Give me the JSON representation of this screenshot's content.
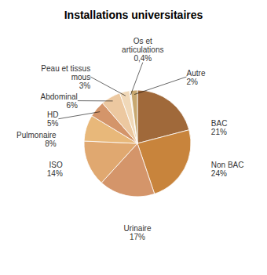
{
  "chart_data": {
    "type": "pie",
    "title": "Installations universitaires",
    "categories": [
      "BAC",
      "Non BAC",
      "Urinaire",
      "ISO",
      "Pulmonaire",
      "HD",
      "Abdominal",
      "Peau et tissus\nmous",
      "Os et\narticulations",
      "Autre"
    ],
    "values": [
      21,
      24,
      17,
      14,
      8,
      5,
      6,
      3,
      0.4,
      2
    ],
    "value_labels": [
      "21%",
      "24%",
      "17%",
      "14%",
      "8%",
      "5%",
      "6%",
      "3%",
      "0,4%",
      "2%"
    ],
    "colors": [
      "#A0693A",
      "#C8843C",
      "#D4956A",
      "#E0A870",
      "#E8B87A",
      "#D4956A",
      "#ECC8A0",
      "#F0D8B8",
      "#F8EAD8",
      "#C8A870"
    ],
    "data_labels": true
  }
}
